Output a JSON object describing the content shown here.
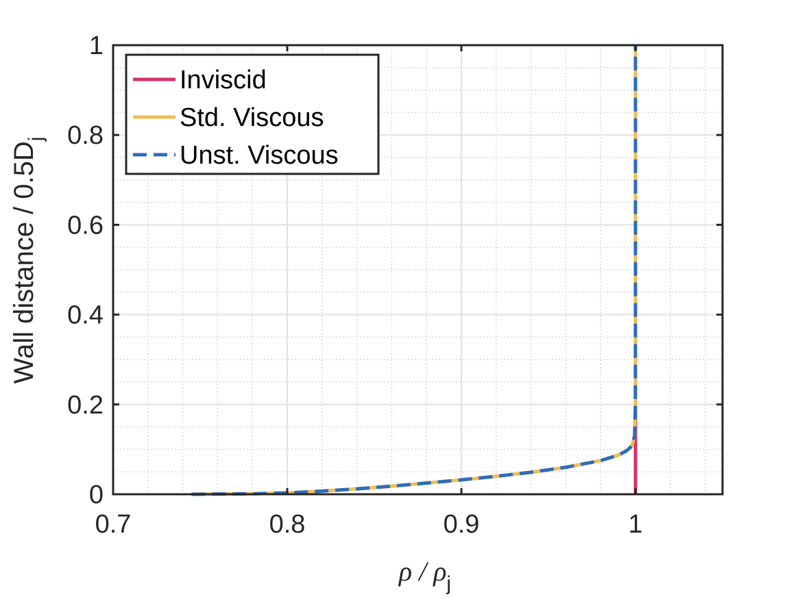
{
  "chart_data": {
    "type": "line",
    "title": "",
    "xlabel": {
      "main": "ρ / ρ",
      "sub": "j"
    },
    "ylabel": {
      "main": "Wall distance / 0.5D",
      "sub": "j"
    },
    "xlim": [
      0.7,
      1.05
    ],
    "ylim": [
      0,
      1
    ],
    "xticks": [
      0.7,
      0.8,
      0.9,
      1.0
    ],
    "xtick_labels": [
      "0.7",
      "0.8",
      "0.9",
      "1"
    ],
    "yticks": [
      0,
      0.2,
      0.4,
      0.6,
      0.8,
      1.0
    ],
    "ytick_labels": [
      "0",
      "0.2",
      "0.4",
      "0.6",
      "0.8",
      "1"
    ],
    "grid": true,
    "minor_grid": true,
    "legend_position": "top-left",
    "series": [
      {
        "name": "Inviscid",
        "color": "#d6336c",
        "style": "solid",
        "x": [
          1.0,
          1.0
        ],
        "y": [
          0.0,
          1.0
        ]
      },
      {
        "name": "Std. Viscous",
        "color": "#f0bd57",
        "style": "solid",
        "x": [
          0.745,
          0.76,
          0.78,
          0.8,
          0.82,
          0.84,
          0.86,
          0.88,
          0.9,
          0.92,
          0.94,
          0.96,
          0.98,
          0.99,
          0.995,
          0.998,
          0.9995,
          0.99995,
          1.0,
          1.0
        ],
        "y": [
          0.0,
          0.0005,
          0.001,
          0.003,
          0.007,
          0.012,
          0.018,
          0.025,
          0.032,
          0.04,
          0.049,
          0.06,
          0.075,
          0.087,
          0.097,
          0.108,
          0.13,
          0.2,
          0.5,
          1.0
        ]
      },
      {
        "name": "Unst. Viscous",
        "color": "#2f6db5",
        "style": "dashed",
        "x": [
          0.745,
          0.76,
          0.78,
          0.8,
          0.82,
          0.84,
          0.86,
          0.88,
          0.9,
          0.92,
          0.94,
          0.96,
          0.98,
          0.99,
          0.995,
          0.998,
          0.9995,
          0.99995,
          1.0,
          1.0
        ],
        "y": [
          0.0,
          0.0005,
          0.001,
          0.003,
          0.007,
          0.012,
          0.018,
          0.025,
          0.032,
          0.04,
          0.049,
          0.06,
          0.075,
          0.087,
          0.097,
          0.108,
          0.13,
          0.2,
          0.5,
          1.0
        ]
      }
    ]
  }
}
